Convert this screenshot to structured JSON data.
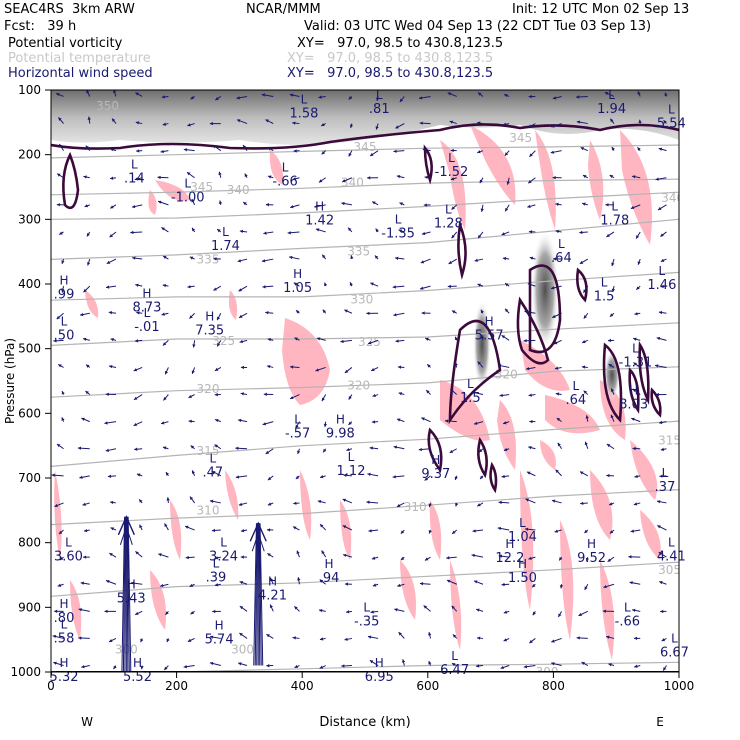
{
  "header": {
    "model": "SEAC4RS  3km ARW",
    "institution": "NCAR/MMM",
    "init": "Init: 12 UTC Mon 02 Sep 13",
    "fcst": "Fcst:   39 h",
    "valid": "Valid: 03 UTC Wed 04 Sep 13 (22 CDT Tue 03 Sep 13)"
  },
  "legend": [
    {
      "label": "Potential vorticity",
      "xy": "XY=   97.0, 98.5 to 430.8,123.5",
      "color": "#000000"
    },
    {
      "label": "Potential temperature",
      "xy": "XY=   97.0, 98.5 to 430.8,123.5",
      "color": "#c8c8c8"
    },
    {
      "label": "Horizontal wind speed",
      "xy": "XY=   97.0, 98.5 to 430.8,123.5",
      "color": "#191970"
    }
  ],
  "chart_data": {
    "type": "cross-section",
    "xlabel": "Distance (km)",
    "ylabel": "Pressure (hPa)",
    "xlim": [
      0,
      1000
    ],
    "ylim": [
      1000,
      100
    ],
    "xticks": [
      0,
      200,
      400,
      600,
      800,
      1000
    ],
    "yticks": [
      100,
      200,
      300,
      400,
      500,
      600,
      700,
      800,
      900,
      1000
    ],
    "x_end_labels": {
      "left": "W",
      "right": "E"
    },
    "isentropes": [
      {
        "theta": "350",
        "p": [
          205,
          200,
          195,
          190,
          188,
          185
        ]
      },
      {
        "theta": "345",
        "p": [
          262,
          258,
          252,
          244,
          240,
          238
        ]
      },
      {
        "theta": "340",
        "p": [
          300,
          298,
          290,
          280,
          268,
          258
        ]
      },
      {
        "theta": "335",
        "p": [
          362,
          355,
          345,
          336,
          318,
          300
        ]
      },
      {
        "theta": "330",
        "p": [
          425,
          420,
          420,
          410,
          395,
          382
        ]
      },
      {
        "theta": "325",
        "p": [
          495,
          485,
          485,
          482,
          470,
          460
        ]
      },
      {
        "theta": "320",
        "p": [
          575,
          565,
          560,
          553,
          535,
          528
        ]
      },
      {
        "theta": "315",
        "p": [
          682,
          665,
          650,
          640,
          625,
          612
        ]
      },
      {
        "theta": "310",
        "p": [
          772,
          762,
          755,
          742,
          728,
          718
        ]
      },
      {
        "theta": "305",
        "p": [
          883,
          868,
          862,
          852,
          842,
          830
        ]
      },
      {
        "theta": "300",
        "p": [
          1010,
          1000,
          995,
          990,
          988,
          985
        ]
      }
    ],
    "isentrope_x": [
      0,
      200,
      400,
      600,
      800,
      1000
    ],
    "isentrope_labels": [
      {
        "text": "350",
        "x": 90,
        "p": 125
      },
      {
        "text": "345",
        "x": 240,
        "p": 250
      },
      {
        "text": "340",
        "x": 298,
        "p": 255
      },
      {
        "text": "340",
        "x": 480,
        "p": 243
      },
      {
        "text": "340",
        "x": 990,
        "p": 267
      },
      {
        "text": "345",
        "x": 500,
        "p": 188
      },
      {
        "text": "345",
        "x": 748,
        "p": 174
      },
      {
        "text": "335",
        "x": 250,
        "p": 362
      },
      {
        "text": "335",
        "x": 490,
        "p": 350
      },
      {
        "text": "330",
        "x": 495,
        "p": 424
      },
      {
        "text": "325",
        "x": 275,
        "p": 488
      },
      {
        "text": "325",
        "x": 507,
        "p": 490
      },
      {
        "text": "320",
        "x": 250,
        "p": 562
      },
      {
        "text": "320",
        "x": 490,
        "p": 557
      },
      {
        "text": "320",
        "x": 725,
        "p": 540
      },
      {
        "text": "315",
        "x": 250,
        "p": 658
      },
      {
        "text": "315",
        "x": 985,
        "p": 642
      },
      {
        "text": "310",
        "x": 250,
        "p": 750
      },
      {
        "text": "310",
        "x": 580,
        "p": 745
      },
      {
        "text": "305",
        "x": 985,
        "p": 842
      },
      {
        "text": "300",
        "x": 120,
        "p": 965
      },
      {
        "text": "300",
        "x": 305,
        "p": 965
      },
      {
        "text": "300",
        "x": 660,
        "p": 1008
      },
      {
        "text": "300",
        "x": 790,
        "p": 1000
      }
    ],
    "wind_jets": [
      {
        "x": 120,
        "p_top": 760,
        "p_bottom": 1005
      },
      {
        "x": 330,
        "p_top": 770,
        "p_bottom": 990
      }
    ],
    "extrema_labels": [
      {
        "mark": "L",
        "value": ".14",
        "x": 120,
        "p": 235
      },
      {
        "mark": "L",
        "value": "-1.00",
        "x": 205,
        "p": 265
      },
      {
        "mark": "L",
        "value": "-.66",
        "x": 360,
        "p": 240
      },
      {
        "mark": "L",
        "value": "1.58",
        "x": 390,
        "p": 135
      },
      {
        "mark": "L",
        "value": ".81",
        "x": 510,
        "p": 125
      },
      {
        "mark": "L",
        "value": "-1.52",
        "x": 625,
        "p": 225
      },
      {
        "mark": "L",
        "value": "1.94",
        "x": 880,
        "p": 125
      },
      {
        "mark": "L",
        "value": "5.54",
        "x": 975,
        "p": 150
      },
      {
        "mark": "L",
        "value": "1.74",
        "x": 265,
        "p": 340
      },
      {
        "mark": "H",
        "value": "1.42",
        "x": 415,
        "p": 300
      },
      {
        "mark": "L",
        "value": "-1.35",
        "x": 540,
        "p": 320
      },
      {
        "mark": "L",
        "value": "1.28",
        "x": 620,
        "p": 305
      },
      {
        "mark": "L",
        "value": "1.78",
        "x": 885,
        "p": 300
      },
      {
        "mark": "H",
        "value": ".99",
        "x": 8,
        "p": 415
      },
      {
        "mark": "H",
        "value": "8.73",
        "x": 140,
        "p": 435
      },
      {
        "mark": "H",
        "value": "1.05",
        "x": 380,
        "p": 405
      },
      {
        "mark": "L",
        "value": ".64",
        "x": 800,
        "p": 358
      },
      {
        "mark": "L",
        "value": "1.46",
        "x": 960,
        "p": 400
      },
      {
        "mark": "L",
        "value": "-.01",
        "x": 140,
        "p": 465
      },
      {
        "mark": "H",
        "value": "7.35",
        "x": 240,
        "p": 470
      },
      {
        "mark": "L",
        "value": ".50",
        "x": 8,
        "p": 478
      },
      {
        "mark": "H",
        "value": "5.57",
        "x": 685,
        "p": 478
      },
      {
        "mark": "L",
        "value": "1.5",
        "x": 868,
        "p": 418
      },
      {
        "mark": "L",
        "value": "-1.31",
        "x": 918,
        "p": 520
      },
      {
        "mark": "H",
        "value": "8.03",
        "x": 915,
        "p": 585
      },
      {
        "mark": "L",
        "value": "1.5",
        "x": 655,
        "p": 575
      },
      {
        "mark": "L",
        "value": ".64",
        "x": 823,
        "p": 578
      },
      {
        "mark": "L",
        "value": "-.57",
        "x": 380,
        "p": 630
      },
      {
        "mark": "H",
        "value": "9.98",
        "x": 448,
        "p": 630
      },
      {
        "mark": "L",
        "value": ".47",
        "x": 245,
        "p": 690
      },
      {
        "mark": "L",
        "value": "1.12",
        "x": 465,
        "p": 688
      },
      {
        "mark": "H",
        "value": "9.37",
        "x": 600,
        "p": 692
      },
      {
        "mark": "L",
        "value": ".37",
        "x": 965,
        "p": 712
      },
      {
        "mark": "L",
        "value": "1.04",
        "x": 738,
        "p": 790
      },
      {
        "mark": "L",
        "value": "3.60",
        "x": 15,
        "p": 820
      },
      {
        "mark": "L",
        "value": "3.24",
        "x": 262,
        "p": 820
      },
      {
        "mark": "H",
        "value": "12.2",
        "x": 718,
        "p": 822
      },
      {
        "mark": "H",
        "value": "9.52",
        "x": 848,
        "p": 822
      },
      {
        "mark": "L",
        "value": "4.41",
        "x": 975,
        "p": 820
      },
      {
        "mark": "L",
        "value": ".39",
        "x": 250,
        "p": 852
      },
      {
        "mark": "H",
        "value": ".94",
        "x": 430,
        "p": 853
      },
      {
        "mark": "H",
        "value": "1.50",
        "x": 738,
        "p": 853
      },
      {
        "mark": "H",
        "value": "5.43",
        "x": 115,
        "p": 885
      },
      {
        "mark": "H",
        "value": "4.21",
        "x": 340,
        "p": 880
      },
      {
        "mark": "H",
        "value": ".80",
        "x": 8,
        "p": 915
      },
      {
        "mark": "L",
        "value": "-.35",
        "x": 490,
        "p": 920
      },
      {
        "mark": "L",
        "value": "-.66",
        "x": 905,
        "p": 920
      },
      {
        "mark": "L",
        "value": ".58",
        "x": 8,
        "p": 947
      },
      {
        "mark": "H",
        "value": "5.74",
        "x": 255,
        "p": 948
      },
      {
        "mark": "L",
        "value": "6.67",
        "x": 980,
        "p": 968
      },
      {
        "mark": "L",
        "value": "6.47",
        "x": 630,
        "p": 995
      },
      {
        "mark": "H",
        "value": "5.32",
        "x": 8,
        "p": 1030
      },
      {
        "mark": "H",
        "value": "5.52",
        "x": 125,
        "p": 1030
      },
      {
        "mark": "H",
        "value": "6.95",
        "x": 510,
        "p": 1030
      }
    ],
    "colors": {
      "pv_contour": "#3b0a3b",
      "isentrope": "#b4b4b4",
      "wind": "#191970",
      "pv_shade": "#ffb6c1",
      "stratosphere_gray": "#9a9a9a"
    }
  }
}
